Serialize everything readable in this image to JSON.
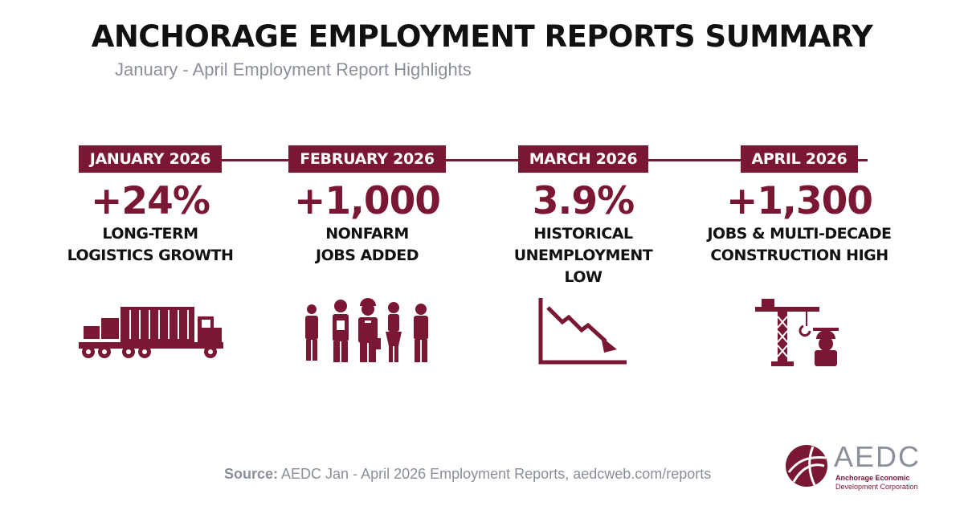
{
  "header": {
    "title": "ANCHORAGE EMPLOYMENT REPORTS SUMMARY",
    "subtitle": "January - April Employment Report Highlights"
  },
  "colors": {
    "accent": "#7a1732",
    "text": "#111111",
    "muted": "#8a8f99"
  },
  "months": [
    {
      "label": "JANUARY 2026",
      "stat": "+24%",
      "caption": [
        "LONG-TERM",
        "LOGISTICS GROWTH"
      ],
      "icon": "truck-icon"
    },
    {
      "label": "FEBRUARY 2026",
      "stat": "+1,000",
      "caption": [
        "NONFARM",
        "JOBS ADDED"
      ],
      "icon": "workers-icon"
    },
    {
      "label": "MARCH 2026",
      "stat": "3.9%",
      "caption": [
        "HISTORICAL",
        "UNEMPLOYMENT",
        "LOW"
      ],
      "icon": "declining-chart-icon"
    },
    {
      "label": "APRIL 2026",
      "stat": "+1,300",
      "caption": [
        "JOBS & MULTI-DECADE",
        "CONSTRUCTION HIGH"
      ],
      "icon": "crane-worker-icon"
    }
  ],
  "footer": {
    "source_label": "Source:",
    "source_text": " AEDC Jan - April 2026 Employment Reports, aedcweb.com/reports"
  },
  "logo": {
    "name": "AEDC",
    "line1": "Anchorage Economic",
    "line2": "Development Corporation"
  }
}
